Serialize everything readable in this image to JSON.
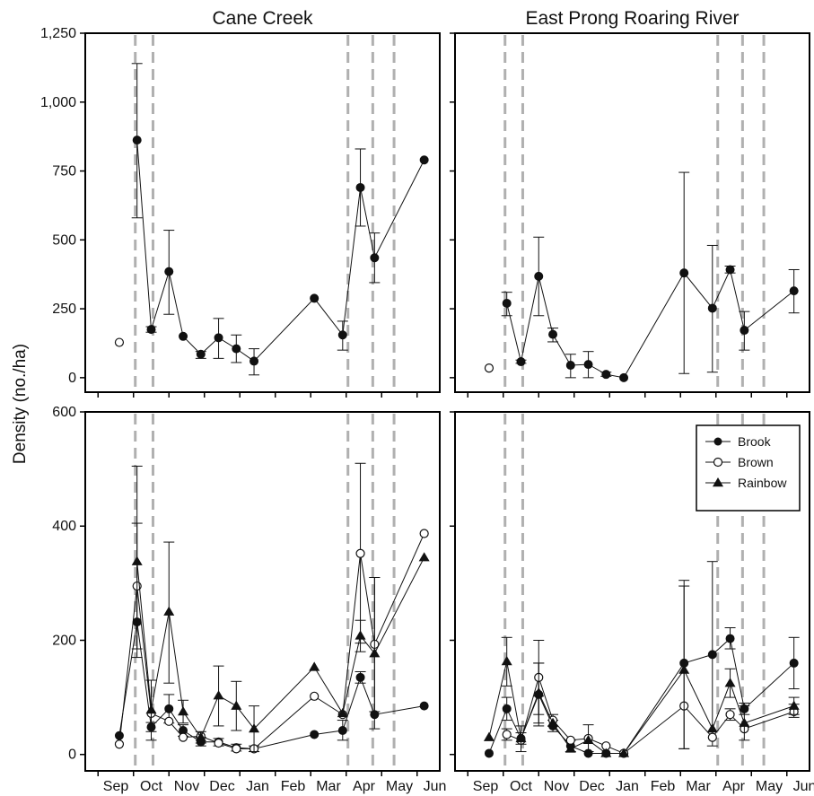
{
  "chart_data": {
    "type": "line",
    "ylabel": "Density (no./ha)",
    "months": [
      "Sep",
      "Oct",
      "Nov",
      "Dec",
      "Jan",
      "Feb",
      "Mar",
      "Apr",
      "May",
      "Jun"
    ],
    "vlines_month_positions": [
      1.55,
      2.05,
      7.55,
      8.25,
      8.85
    ],
    "legend": {
      "placement": "top-right of lower-right panel",
      "entries": [
        {
          "name": "Brook",
          "marker": "filled-circle"
        },
        {
          "name": "Brown",
          "marker": "open-circle"
        },
        {
          "name": "Rainbow",
          "marker": "filled-triangle"
        }
      ]
    },
    "panels": [
      {
        "title": "Cane Creek",
        "row": 0,
        "col": 0,
        "yticks": [
          "0",
          "250",
          "500",
          "750",
          "1,000",
          "1,250"
        ],
        "ytick_values": [
          0,
          250,
          500,
          750,
          1000,
          1250
        ],
        "ylim": [
          -20,
          1250
        ],
        "series": [
          {
            "name": "Brook",
            "marker": "filled-circle",
            "points": [
              {
                "x": 1.6,
                "y": 862,
                "lo": 580,
                "hi": 1140
              },
              {
                "x": 2.0,
                "y": 175,
                "lo": 165,
                "hi": 185
              },
              {
                "x": 2.5,
                "y": 385,
                "lo": 230,
                "hi": 535
              },
              {
                "x": 2.9,
                "y": 150
              },
              {
                "x": 3.4,
                "y": 85,
                "lo": 70,
                "hi": 95
              },
              {
                "x": 3.9,
                "y": 145,
                "lo": 70,
                "hi": 215
              },
              {
                "x": 4.4,
                "y": 105,
                "lo": 55,
                "hi": 155
              },
              {
                "x": 4.9,
                "y": 60,
                "lo": 10,
                "hi": 105
              },
              {
                "x": 6.6,
                "y": 288
              },
              {
                "x": 7.4,
                "y": 155,
                "lo": 100,
                "hi": 205
              },
              {
                "x": 7.9,
                "y": 690,
                "lo": 550,
                "hi": 830
              },
              {
                "x": 8.3,
                "y": 435,
                "lo": 345,
                "hi": 525
              },
              {
                "x": 9.7,
                "y": 790
              }
            ]
          },
          {
            "name": "Brown",
            "marker": "open-circle",
            "points": [
              {
                "x": 1.1,
                "y": 128
              }
            ]
          }
        ]
      },
      {
        "title": "East Prong Roaring River",
        "row": 0,
        "col": 1,
        "yticks": [
          "0",
          "250",
          "500",
          "750",
          "1,000",
          "1,250"
        ],
        "ytick_values": [
          0,
          250,
          500,
          750,
          1000,
          1250
        ],
        "ylim": [
          -20,
          1250
        ],
        "series": [
          {
            "name": "Brook",
            "marker": "filled-circle",
            "points": [
              {
                "x": 1.6,
                "y": 270,
                "lo": 225,
                "hi": 310
              },
              {
                "x": 2.0,
                "y": 58,
                "lo": 52,
                "hi": 64
              },
              {
                "x": 2.5,
                "y": 368,
                "lo": 225,
                "hi": 510
              },
              {
                "x": 2.9,
                "y": 157,
                "lo": 130,
                "hi": 180
              },
              {
                "x": 3.4,
                "y": 45,
                "lo": 0,
                "hi": 85
              },
              {
                "x": 3.9,
                "y": 48,
                "lo": 0,
                "hi": 95
              },
              {
                "x": 4.4,
                "y": 12,
                "lo": 5,
                "hi": 20
              },
              {
                "x": 4.9,
                "y": 0
              },
              {
                "x": 6.6,
                "y": 380,
                "lo": 15,
                "hi": 745
              },
              {
                "x": 7.4,
                "y": 252,
                "lo": 20,
                "hi": 480
              },
              {
                "x": 7.9,
                "y": 392,
                "lo": 380,
                "hi": 405
              },
              {
                "x": 8.3,
                "y": 172,
                "lo": 100,
                "hi": 240
              },
              {
                "x": 9.7,
                "y": 315,
                "lo": 235,
                "hi": 392
              }
            ]
          },
          {
            "name": "Brown",
            "marker": "open-circle",
            "points": [
              {
                "x": 1.1,
                "y": 35
              }
            ]
          }
        ]
      },
      {
        "title": "",
        "row": 1,
        "col": 0,
        "yticks": [
          "0",
          "200",
          "400",
          "600"
        ],
        "ytick_values": [
          0,
          200,
          400,
          600
        ],
        "ylim": [
          -13,
          600
        ],
        "series": [
          {
            "name": "Brook",
            "marker": "filled-circle",
            "points": [
              {
                "x": 1.1,
                "y": 33
              },
              {
                "x": 1.6,
                "y": 232
              },
              {
                "x": 2.0,
                "y": 48,
                "lo": 40,
                "hi": 56
              },
              {
                "x": 2.5,
                "y": 80,
                "lo": 55,
                "hi": 105
              },
              {
                "x": 2.9,
                "y": 42,
                "lo": 32,
                "hi": 52
              },
              {
                "x": 3.4,
                "y": 22,
                "lo": 15,
                "hi": 30
              },
              {
                "x": 3.9,
                "y": 22,
                "lo": 15,
                "hi": 28
              },
              {
                "x": 4.4,
                "y": 12,
                "lo": 6,
                "hi": 18
              },
              {
                "x": 4.9,
                "y": 10,
                "lo": 5,
                "hi": 15
              },
              {
                "x": 6.6,
                "y": 35
              },
              {
                "x": 7.4,
                "y": 42,
                "lo": 25,
                "hi": 60
              },
              {
                "x": 7.9,
                "y": 135,
                "lo": 125,
                "hi": 145
              },
              {
                "x": 8.3,
                "y": 70
              },
              {
                "x": 9.7,
                "y": 85
              }
            ]
          },
          {
            "name": "Brown",
            "marker": "open-circle",
            "points": [
              {
                "x": 1.1,
                "y": 18
              },
              {
                "x": 1.6,
                "y": 295,
                "lo": 185,
                "hi": 405
              },
              {
                "x": 2.0,
                "y": 72
              },
              {
                "x": 2.5,
                "y": 58
              },
              {
                "x": 2.9,
                "y": 30
              },
              {
                "x": 3.4,
                "y": 32
              },
              {
                "x": 3.9,
                "y": 20
              },
              {
                "x": 4.4,
                "y": 10
              },
              {
                "x": 4.9,
                "y": 10
              },
              {
                "x": 6.6,
                "y": 102
              },
              {
                "x": 7.4,
                "y": 70
              },
              {
                "x": 7.9,
                "y": 352,
                "lo": 195,
                "hi": 510
              },
              {
                "x": 8.3,
                "y": 193,
                "lo": 75,
                "hi": 310
              },
              {
                "x": 9.7,
                "y": 387
              }
            ]
          },
          {
            "name": "Rainbow",
            "marker": "filled-triangle",
            "points": [
              {
                "x": 1.6,
                "y": 338,
                "lo": 170,
                "hi": 505
              },
              {
                "x": 2.0,
                "y": 78,
                "lo": 25,
                "hi": 130
              },
              {
                "x": 2.5,
                "y": 250,
                "lo": 125,
                "hi": 372
              },
              {
                "x": 2.9,
                "y": 75,
                "lo": 55,
                "hi": 95
              },
              {
                "x": 3.4,
                "y": 30,
                "lo": 20,
                "hi": 40
              },
              {
                "x": 3.9,
                "y": 103,
                "lo": 50,
                "hi": 155
              },
              {
                "x": 4.4,
                "y": 85,
                "lo": 42,
                "hi": 128
              },
              {
                "x": 4.9,
                "y": 45,
                "lo": 5,
                "hi": 85
              },
              {
                "x": 6.6,
                "y": 153
              },
              {
                "x": 7.4,
                "y": 72
              },
              {
                "x": 7.9,
                "y": 208,
                "lo": 180,
                "hi": 235
              },
              {
                "x": 8.3,
                "y": 177,
                "lo": 45,
                "hi": 310
              },
              {
                "x": 9.7,
                "y": 345
              }
            ]
          }
        ]
      },
      {
        "title": "",
        "row": 1,
        "col": 1,
        "yticks": [
          "0",
          "200",
          "400",
          "600"
        ],
        "ytick_values": [
          0,
          200,
          400,
          600
        ],
        "ylim": [
          -13,
          600
        ],
        "series": [
          {
            "name": "Brook",
            "marker": "filled-circle",
            "points": [
              {
                "x": 1.1,
                "y": 2
              },
              {
                "x": 1.6,
                "y": 80,
                "lo": 60,
                "hi": 100
              },
              {
                "x": 2.0,
                "y": 28,
                "lo": 18,
                "hi": 38
              },
              {
                "x": 2.5,
                "y": 105,
                "lo": 50,
                "hi": 160
              },
              {
                "x": 2.9,
                "y": 50,
                "lo": 40,
                "hi": 60
              },
              {
                "x": 3.4,
                "y": 15,
                "lo": 5,
                "hi": 25
              },
              {
                "x": 3.9,
                "y": 2
              },
              {
                "x": 4.4,
                "y": 2
              },
              {
                "x": 4.9,
                "y": 2
              },
              {
                "x": 6.6,
                "y": 160,
                "lo": 10,
                "hi": 305
              },
              {
                "x": 7.4,
                "y": 175,
                "lo": 15,
                "hi": 338
              },
              {
                "x": 7.9,
                "y": 203,
                "lo": 185,
                "hi": 222
              },
              {
                "x": 8.3,
                "y": 80,
                "lo": 70,
                "hi": 90
              },
              {
                "x": 9.7,
                "y": 160,
                "lo": 115,
                "hi": 205
              }
            ]
          },
          {
            "name": "Brown",
            "marker": "open-circle",
            "points": [
              {
                "x": 1.6,
                "y": 35,
                "lo": 25,
                "hi": 45
              },
              {
                "x": 2.0,
                "y": 25
              },
              {
                "x": 2.5,
                "y": 135,
                "lo": 70,
                "hi": 200
              },
              {
                "x": 2.9,
                "y": 60,
                "lo": 50,
                "hi": 70
              },
              {
                "x": 3.4,
                "y": 25
              },
              {
                "x": 3.9,
                "y": 28,
                "lo": 5,
                "hi": 52
              },
              {
                "x": 4.4,
                "y": 15
              },
              {
                "x": 4.9,
                "y": 2
              },
              {
                "x": 6.6,
                "y": 85
              },
              {
                "x": 7.4,
                "y": 30
              },
              {
                "x": 7.9,
                "y": 70,
                "lo": 60,
                "hi": 80
              },
              {
                "x": 8.3,
                "y": 45
              },
              {
                "x": 9.7,
                "y": 75,
                "lo": 65,
                "hi": 88
              }
            ]
          },
          {
            "name": "Rainbow",
            "marker": "filled-triangle",
            "points": [
              {
                "x": 1.1,
                "y": 30
              },
              {
                "x": 1.6,
                "y": 163,
                "lo": 120,
                "hi": 205
              },
              {
                "x": 2.0,
                "y": 28,
                "lo": 5,
                "hi": 50
              },
              {
                "x": 2.5,
                "y": 108,
                "lo": 55,
                "hi": 160
              },
              {
                "x": 2.9,
                "y": 55
              },
              {
                "x": 3.4,
                "y": 10
              },
              {
                "x": 3.9,
                "y": 25
              },
              {
                "x": 4.4,
                "y": 2
              },
              {
                "x": 4.9,
                "y": 2
              },
              {
                "x": 6.6,
                "y": 148,
                "lo": 10,
                "hi": 295
              },
              {
                "x": 7.4,
                "y": 45
              },
              {
                "x": 7.9,
                "y": 125,
                "lo": 100,
                "hi": 150
              },
              {
                "x": 8.3,
                "y": 55,
                "lo": 25,
                "hi": 85
              },
              {
                "x": 9.7,
                "y": 85,
                "lo": 70,
                "hi": 100
              }
            ]
          }
        ]
      }
    ]
  }
}
